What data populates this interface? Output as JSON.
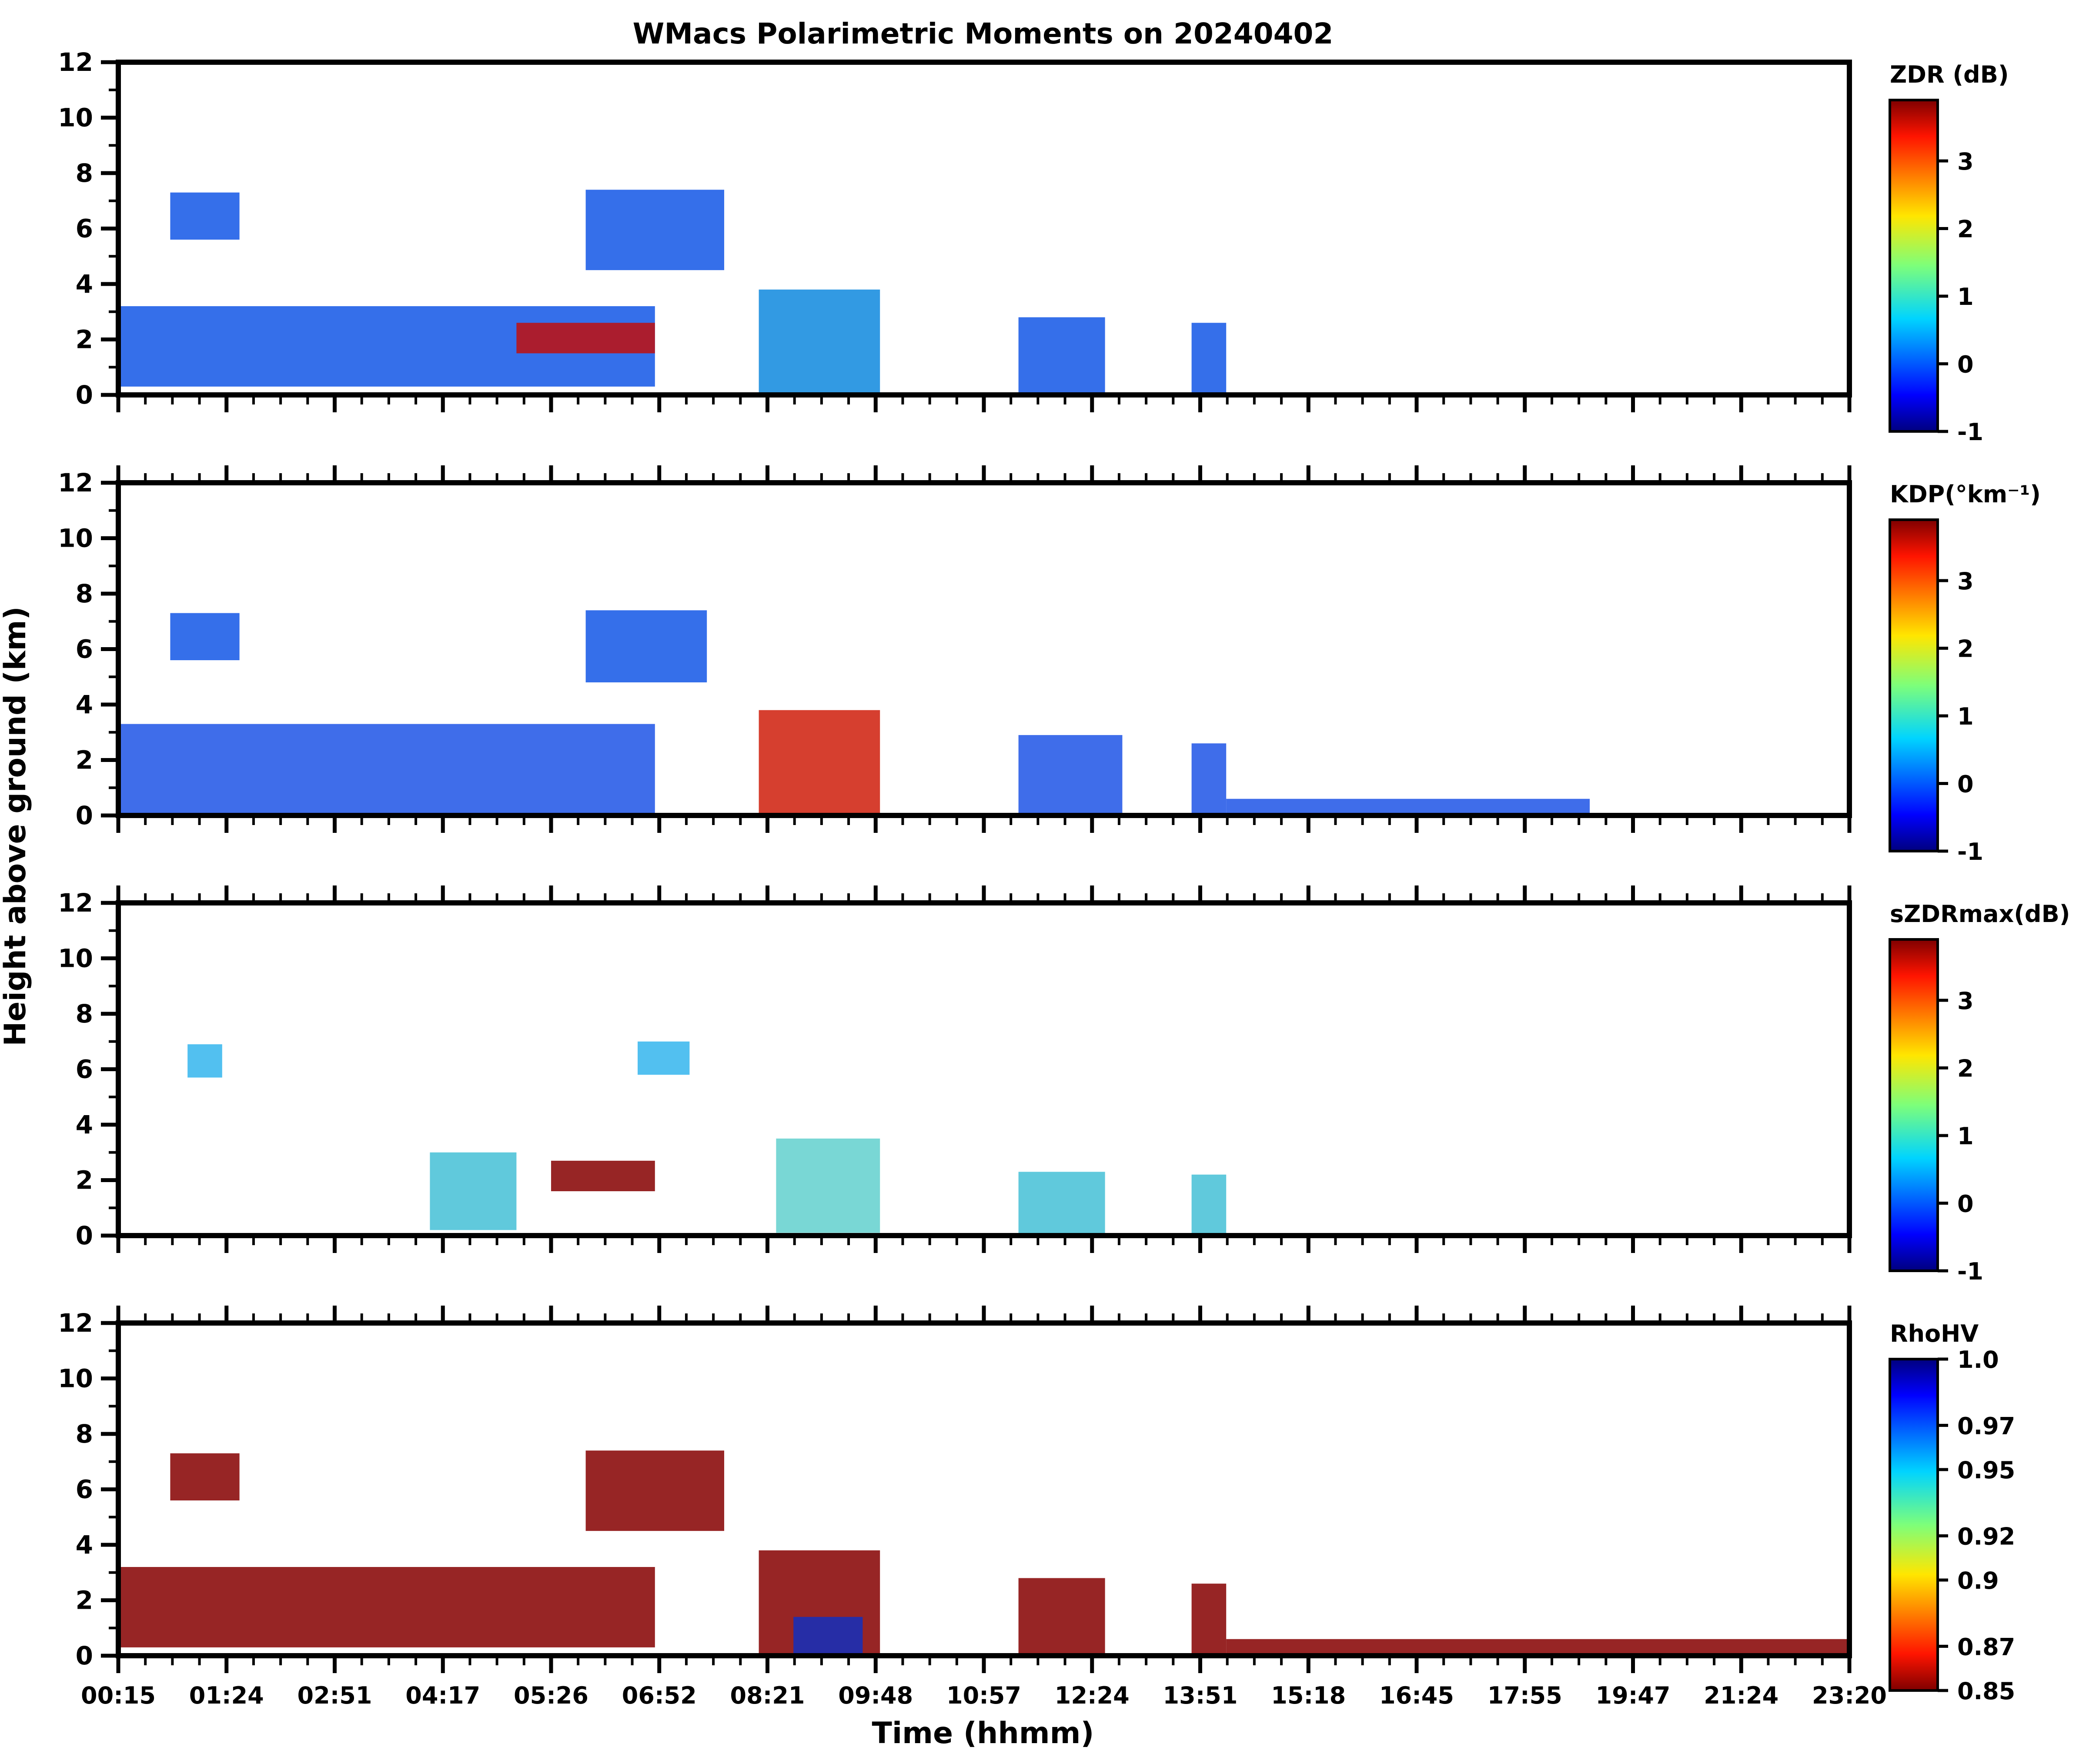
{
  "chart_data": {
    "type": "heatmap",
    "title": "WMacs Polarimetric Moments on 20240402",
    "xlabel": "Time (hhmm)",
    "ylabel": "Height above ground (km)",
    "x_ticklabels": [
      "00:15",
      "01:24",
      "02:51",
      "04:17",
      "05:26",
      "06:52",
      "08:21",
      "09:48",
      "10:57",
      "12:24",
      "13:51",
      "15:18",
      "16:45",
      "17:55",
      "19:47",
      "21:24",
      "23:20"
    ],
    "ylim": [
      0,
      12
    ],
    "y_ticks": [
      0,
      2,
      4,
      6,
      8,
      10,
      12
    ],
    "panels": [
      {
        "variable": "ZDR",
        "colorbar_label": "ZDR (dB)",
        "colormap": "jet",
        "cbar_ticks": [
          "-1",
          "0",
          "1",
          "2",
          "3"
        ],
        "cbar_range": [
          -1,
          3.9
        ],
        "echoes": [
          {
            "t0": 0.03,
            "t1": 0.07,
            "h0": 5.6,
            "h1": 7.3,
            "color": "#1f5fe8"
          },
          {
            "t0": 0.27,
            "t1": 0.35,
            "h0": 4.5,
            "h1": 7.4,
            "color": "#1f5fe8"
          },
          {
            "t0": 0.0,
            "t1": 0.31,
            "h0": 0.3,
            "h1": 3.2,
            "color": "#1f5fe8"
          },
          {
            "t0": 0.23,
            "t1": 0.31,
            "h0": 1.5,
            "h1": 2.6,
            "color": "#b8141a"
          },
          {
            "t0": 0.37,
            "t1": 0.44,
            "h0": 0.0,
            "h1": 3.8,
            "color": "#1c8fe0"
          },
          {
            "t0": 0.52,
            "t1": 0.57,
            "h0": 0.0,
            "h1": 2.8,
            "color": "#1f5fe8"
          },
          {
            "t0": 0.62,
            "t1": 0.64,
            "h0": 0.0,
            "h1": 2.6,
            "color": "#1f5fe8"
          }
        ]
      },
      {
        "variable": "KDP",
        "colorbar_label": "KDP(°km⁻¹)",
        "colormap": "jet",
        "cbar_ticks": [
          "-1",
          "0",
          "1",
          "2",
          "3"
        ],
        "cbar_range": [
          -1,
          3.9
        ],
        "echoes": [
          {
            "t0": 0.03,
            "t1": 0.07,
            "h0": 5.6,
            "h1": 7.3,
            "color": "#1f5fe8"
          },
          {
            "t0": 0.27,
            "t1": 0.34,
            "h0": 4.8,
            "h1": 7.4,
            "color": "#1f5fe8"
          },
          {
            "t0": 0.0,
            "t1": 0.31,
            "h0": 0.0,
            "h1": 3.3,
            "color": "#2a5de8"
          },
          {
            "t0": 0.37,
            "t1": 0.44,
            "h0": 0.0,
            "h1": 3.8,
            "color": "#d22a18"
          },
          {
            "t0": 0.52,
            "t1": 0.58,
            "h0": 0.0,
            "h1": 2.9,
            "color": "#2a5de8"
          },
          {
            "t0": 0.62,
            "t1": 0.64,
            "h0": 0.0,
            "h1": 2.6,
            "color": "#2a5de8"
          },
          {
            "t0": 0.64,
            "t1": 0.85,
            "h0": 0.0,
            "h1": 0.6,
            "color": "#2a5de8"
          }
        ]
      },
      {
        "variable": "sZDRmax",
        "colorbar_label": "sZDRmax(dB)",
        "colormap": "jet",
        "cbar_ticks": [
          "-1",
          "0",
          "1",
          "2",
          "3"
        ],
        "cbar_range": [
          -1,
          3.9
        ],
        "echoes": [
          {
            "t0": 0.04,
            "t1": 0.06,
            "h0": 5.7,
            "h1": 6.9,
            "color": "#3fb9ee"
          },
          {
            "t0": 0.3,
            "t1": 0.33,
            "h0": 5.8,
            "h1": 7.0,
            "color": "#3fb9ee"
          },
          {
            "t0": 0.18,
            "t1": 0.23,
            "h0": 0.2,
            "h1": 3.0,
            "color": "#4fc3d8"
          },
          {
            "t0": 0.25,
            "t1": 0.31,
            "h0": 1.6,
            "h1": 2.7,
            "color": "#8c0d0d"
          },
          {
            "t0": 0.38,
            "t1": 0.44,
            "h0": 0.1,
            "h1": 3.5,
            "color": "#6ad3d0"
          },
          {
            "t0": 0.52,
            "t1": 0.57,
            "h0": 0.0,
            "h1": 2.3,
            "color": "#4fc3d8"
          },
          {
            "t0": 0.62,
            "t1": 0.64,
            "h0": 0.0,
            "h1": 2.2,
            "color": "#4fc3d8"
          }
        ]
      },
      {
        "variable": "RhoHV",
        "colorbar_label": "RhoHV",
        "colormap": "jet_r",
        "cbar_ticks": [
          "0.85",
          "0.87",
          "0.9",
          "0.92",
          "0.95",
          "0.97",
          "1.0"
        ],
        "cbar_range": [
          0.85,
          1.0
        ],
        "echoes": [
          {
            "t0": 0.03,
            "t1": 0.07,
            "h0": 5.6,
            "h1": 7.3,
            "color": "#8c0d0d"
          },
          {
            "t0": 0.27,
            "t1": 0.35,
            "h0": 4.5,
            "h1": 7.4,
            "color": "#8c0d0d"
          },
          {
            "t0": 0.0,
            "t1": 0.31,
            "h0": 0.3,
            "h1": 3.2,
            "color": "#8c0d0d"
          },
          {
            "t0": 0.37,
            "t1": 0.44,
            "h0": 0.0,
            "h1": 3.8,
            "color": "#8c0d0d"
          },
          {
            "t0": 0.39,
            "t1": 0.43,
            "h0": 0.0,
            "h1": 1.4,
            "color": "#1a2fb5"
          },
          {
            "t0": 0.52,
            "t1": 0.57,
            "h0": 0.0,
            "h1": 2.8,
            "color": "#8c0d0d"
          },
          {
            "t0": 0.62,
            "t1": 0.64,
            "h0": 0.0,
            "h1": 2.6,
            "color": "#8c0d0d"
          },
          {
            "t0": 0.64,
            "t1": 1.0,
            "h0": 0.0,
            "h1": 0.6,
            "color": "#8c0d0d"
          }
        ]
      }
    ]
  }
}
